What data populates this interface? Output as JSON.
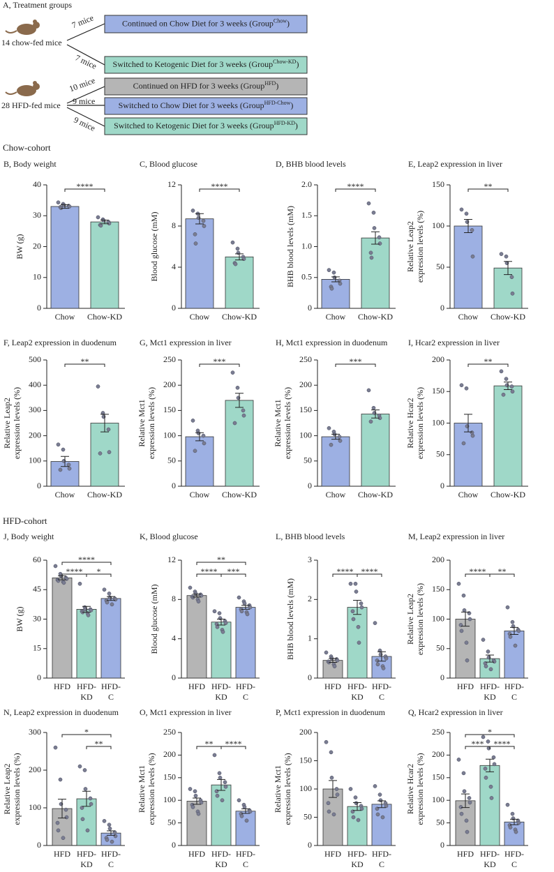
{
  "diagram": {
    "title": "A, Treatment groups",
    "groups": [
      {
        "label": "14 chow-fed mice",
        "arms": [
          {
            "n": "7 mice",
            "text": "Continued on Chow Diet for 3 weeks (Group",
            "sup": "Chow",
            "close": ")",
            "color": "#9db0e3"
          },
          {
            "n": "7 mice",
            "text": "Switched to Ketogenic Diet for 3 weeks (Group",
            "sup": "Chow-KD",
            "close": ")",
            "color": "#9fd8c8"
          }
        ]
      },
      {
        "label": "28 HFD-fed mice",
        "arms": [
          {
            "n": "10 mice",
            "text": "Continued on HFD for 3 weeks (Group",
            "sup": "HFD",
            "close": ")",
            "color": "#b5b5b5"
          },
          {
            "n": "9 mice",
            "text": "Switched to Chow Diet for 3 weeks (Group",
            "sup": "HFD-Chow",
            "close": ")",
            "color": "#9db0e3"
          },
          {
            "n": "9 mice",
            "text": "Switched to Ketogenic Diet for 3 weeks (Group",
            "sup": "HFD-KD",
            "close": ")",
            "color": "#9fd8c8"
          }
        ]
      }
    ]
  },
  "sections": [
    "Chow-cohort",
    "HFD-cohort"
  ],
  "chart_data": [
    {
      "type": "bar",
      "title": "B, Body weight",
      "ylabel": [
        "BW (g)"
      ],
      "categories": [
        "Chow",
        "Chow-KD"
      ],
      "colors": [
        "#9db0e3",
        "#9fd8c8"
      ],
      "values": [
        33,
        28
      ],
      "errors": [
        0.6,
        0.6
      ],
      "points": [
        [
          34.3,
          33.8,
          33.5,
          33.2,
          33,
          32.8,
          32.5
        ],
        [
          29.5,
          28.8,
          28.5,
          28,
          27.5,
          27,
          26.8
        ]
      ],
      "ylim": [
        0,
        40
      ],
      "yticks": [
        0,
        10,
        20,
        30,
        40
      ],
      "significance": [
        {
          "from": 0,
          "to": 1,
          "label": "****"
        }
      ]
    },
    {
      "type": "bar",
      "title": "C, Blood glucose",
      "ylabel": [
        "Blood glucose (mM)"
      ],
      "categories": [
        "Chow",
        "Chow-KD"
      ],
      "colors": [
        "#9db0e3",
        "#9fd8c8"
      ],
      "values": [
        8.7,
        5.0
      ],
      "errors": [
        0.5,
        0.3
      ],
      "points": [
        [
          9.5,
          9.2,
          8.8,
          8.5,
          8.0,
          7.2,
          6.3
        ],
        [
          6.4,
          5.8,
          5.4,
          5.0,
          4.8,
          4.4,
          4.3
        ]
      ],
      "ylim": [
        0,
        12
      ],
      "yticks": [
        0,
        4,
        8,
        12
      ],
      "significance": [
        {
          "from": 0,
          "to": 1,
          "label": "****"
        }
      ]
    },
    {
      "type": "bar",
      "title": "D, BHB blood levels",
      "ylabel": [
        "BHB blood levels (mM)"
      ],
      "categories": [
        "Chow",
        "Chow-KD"
      ],
      "colors": [
        "#9db0e3",
        "#9fd8c8"
      ],
      "values": [
        0.47,
        1.14
      ],
      "errors": [
        0.04,
        0.1
      ],
      "points": [
        [
          0.62,
          0.58,
          0.5,
          0.45,
          0.4,
          0.35,
          0.32
        ],
        [
          1.7,
          1.55,
          1.3,
          1.15,
          1.05,
          0.9,
          0.82
        ]
      ],
      "ylim": [
        0,
        2
      ],
      "yticks": [
        0,
        0.5,
        {
          "value": 1,
          "label": "1.0"
        },
        1.5,
        {
          "value": 2,
          "label": "2.0"
        }
      ],
      "significance": [
        {
          "from": 0,
          "to": 1,
          "label": "****"
        }
      ]
    },
    {
      "type": "bar",
      "title": "E, Leap2 expression in liver",
      "ylabel": [
        "Relative Leap2",
        "expression levels (%)"
      ],
      "categories": [
        "Chow",
        "Chow-KD"
      ],
      "colors": [
        "#9db0e3",
        "#9fd8c8"
      ],
      "values": [
        100,
        49
      ],
      "errors": [
        8,
        8
      ],
      "points": [
        [
          120,
          115,
          105,
          95,
          63
        ],
        [
          66,
          63,
          55,
          38,
          18
        ]
      ],
      "ylim": [
        0,
        150
      ],
      "yticks": [
        0,
        50,
        100,
        150
      ],
      "significance": [
        {
          "from": 0,
          "to": 1,
          "label": "**"
        }
      ]
    },
    {
      "type": "bar",
      "title": "F, Leap2 expression in duodenum",
      "ylabel": [
        "Relative Leap2",
        "expression levels (%)"
      ],
      "categories": [
        "Chow",
        "Chow-KD"
      ],
      "colors": [
        "#9db0e3",
        "#9fd8c8"
      ],
      "values": [
        98,
        250
      ],
      "errors": [
        20,
        35
      ],
      "points": [
        [
          165,
          145,
          100,
          85,
          70,
          65
        ],
        [
          395,
          290,
          275,
          225,
          135,
          130
        ]
      ],
      "ylim": [
        0,
        500
      ],
      "yticks": [
        0,
        100,
        200,
        300,
        400,
        500
      ],
      "significance": [
        {
          "from": 0,
          "to": 1,
          "label": "**"
        }
      ]
    },
    {
      "type": "bar",
      "title": "G, Mct1 expression in liver",
      "ylabel": [
        "Relative Mct1",
        "expression levels (%)"
      ],
      "categories": [
        "Chow",
        "Chow-KD"
      ],
      "colors": [
        "#9db0e3",
        "#9fd8c8"
      ],
      "values": [
        98,
        170
      ],
      "errors": [
        8,
        14
      ],
      "points": [
        [
          130,
          110,
          105,
          100,
          85,
          70
        ],
        [
          225,
          195,
          175,
          150,
          140,
          125
        ]
      ],
      "ylim": [
        0,
        250
      ],
      "yticks": [
        0,
        50,
        100,
        150,
        200,
        250
      ],
      "significance": [
        {
          "from": 0,
          "to": 1,
          "label": "***"
        }
      ]
    },
    {
      "type": "bar",
      "title": "H, Mct1 expression in duodenum",
      "ylabel": [
        "Relative Mct1",
        "expression levels (%)"
      ],
      "categories": [
        "Chow",
        "Chow-KD"
      ],
      "colors": [
        "#9db0e3",
        "#9fd8c8"
      ],
      "values": [
        98,
        143
      ],
      "errors": [
        5,
        8
      ],
      "points": [
        [
          115,
          108,
          103,
          98,
          90,
          82
        ],
        [
          190,
          155,
          145,
          140,
          135,
          128
        ]
      ],
      "ylim": [
        0,
        250
      ],
      "yticks": [
        0,
        50,
        100,
        150,
        200,
        250
      ],
      "significance": [
        {
          "from": 0,
          "to": 1,
          "label": "***"
        }
      ]
    },
    {
      "type": "bar",
      "title": "I, Hcar2 expression in liver",
      "ylabel": [
        "Relative Hcar2",
        "expression levels (%)"
      ],
      "categories": [
        "Chow",
        "Chow-KD"
      ],
      "colors": [
        "#9db0e3",
        "#9fd8c8"
      ],
      "values": [
        100,
        159
      ],
      "errors": [
        14,
        6
      ],
      "points": [
        [
          160,
          155,
          95,
          85,
          80,
          68
        ],
        [
          182,
          170,
          160,
          158,
          150,
          145
        ]
      ],
      "ylim": [
        0,
        200
      ],
      "yticks": [
        0,
        50,
        100,
        150,
        200
      ],
      "significance": [
        {
          "from": 0,
          "to": 1,
          "label": "**"
        }
      ]
    },
    {
      "type": "bar",
      "title": "J, Body weight",
      "ylabel": [
        "BW (g)"
      ],
      "categories": [
        "HFD",
        "HFD-KD",
        "HFD-C"
      ],
      "colors": [
        "#b5b5b5",
        "#9fd8c8",
        "#9db0e3"
      ],
      "values": [
        51,
        35,
        40.5
      ],
      "errors": [
        1,
        1.5,
        1
      ],
      "points": [
        [
          57,
          53,
          52,
          51,
          50.5,
          50,
          49.5,
          49,
          48.5
        ],
        [
          48,
          36,
          35,
          35,
          34.5,
          34,
          33.5,
          33,
          32
        ],
        [
          45,
          43,
          41,
          40.5,
          40,
          39.5,
          38.5,
          37.5
        ]
      ],
      "ylim": [
        0,
        60
      ],
      "yticks": [
        0,
        15,
        30,
        45,
        60
      ],
      "significance": [
        {
          "from": 0,
          "to": 2,
          "label": "****"
        },
        {
          "from": 0,
          "to": 1,
          "label": "****"
        },
        {
          "from": 1,
          "to": 2,
          "label": "*"
        }
      ]
    },
    {
      "type": "bar",
      "title": "K, Blood glucose",
      "ylabel": [
        "Blood glucose (mM)"
      ],
      "categories": [
        "HFD",
        "HFD-KD",
        "HFD-C"
      ],
      "colors": [
        "#b5b5b5",
        "#9fd8c8",
        "#9db0e3"
      ],
      "values": [
        8.4,
        5.7,
        7.2
      ],
      "errors": [
        0.15,
        0.3,
        0.2
      ],
      "points": [
        [
          9.2,
          8.8,
          8.6,
          8.5,
          8.4,
          8.3,
          8.2,
          8.0,
          7.8
        ],
        [
          6.8,
          6.6,
          6.1,
          5.8,
          5.6,
          5.5,
          5.2,
          4.9,
          4.7
        ],
        [
          8.2,
          7.8,
          7.6,
          7.4,
          7.2,
          7.0,
          6.8,
          6.7,
          6.5
        ]
      ],
      "ylim": [
        0,
        12
      ],
      "yticks": [
        0,
        4,
        8,
        12
      ],
      "significance": [
        {
          "from": 0,
          "to": 2,
          "label": "**"
        },
        {
          "from": 0,
          "to": 1,
          "label": "****"
        },
        {
          "from": 1,
          "to": 2,
          "label": "***"
        }
      ]
    },
    {
      "type": "bar",
      "title": "L, BHB blood levels",
      "ylabel": [
        "BHB blood levels (mM)"
      ],
      "categories": [
        "HFD",
        "HFD-KD",
        "HFD-C"
      ],
      "colors": [
        "#b5b5b5",
        "#9fd8c8",
        "#9db0e3"
      ],
      "values": [
        0.45,
        1.8,
        0.55
      ],
      "errors": [
        0.05,
        0.18,
        0.12
      ],
      "points": [
        [
          0.65,
          0.55,
          0.5,
          0.48,
          0.45,
          0.42,
          0.4,
          0.35,
          0.3
        ],
        [
          2.4,
          2.4,
          2.2,
          1.9,
          1.8,
          1.7,
          1.5,
          1.3,
          0.9
        ],
        [
          1.4,
          0.7,
          0.6,
          0.55,
          0.5,
          0.45,
          0.35,
          0.3,
          0.25
        ]
      ],
      "ylim": [
        0,
        3
      ],
      "yticks": [
        0,
        1,
        2,
        3
      ],
      "significance": [
        {
          "from": 0,
          "to": 1,
          "label": "****"
        },
        {
          "from": 1,
          "to": 2,
          "label": "****"
        }
      ]
    },
    {
      "type": "bar",
      "title": "M, Leap2 expression in liver",
      "ylabel": [
        "Relative Leap2",
        "expression levels (%)"
      ],
      "categories": [
        "HFD",
        "HFD-KD",
        "HFD-C"
      ],
      "colors": [
        "#b5b5b5",
        "#9fd8c8",
        "#9db0e3"
      ],
      "values": [
        100,
        33,
        80
      ],
      "errors": [
        12,
        6,
        6
      ],
      "points": [
        [
          160,
          140,
          115,
          110,
          100,
          90,
          80,
          60,
          30
        ],
        [
          65,
          45,
          35,
          30,
          28,
          25,
          20,
          15
        ],
        [
          120,
          95,
          88,
          82,
          80,
          75,
          70,
          55
        ]
      ],
      "ylim": [
        0,
        200
      ],
      "yticks": [
        0,
        50,
        100,
        150,
        200
      ],
      "significance": [
        {
          "from": 0,
          "to": 1,
          "label": "****"
        },
        {
          "from": 1,
          "to": 2,
          "label": "**"
        }
      ]
    },
    {
      "type": "bar",
      "title": "N, Leap2 expression in duodenum",
      "ylabel": [
        "Relative Leap2",
        "expression levels (%)"
      ],
      "categories": [
        "HFD",
        "HFD-KD",
        "HFD-C"
      ],
      "colors": [
        "#b5b5b5",
        "#9fd8c8",
        "#9db0e3"
      ],
      "values": [
        98,
        124,
        33
      ],
      "errors": [
        25,
        20,
        6
      ],
      "points": [
        [
          260,
          175,
          110,
          95,
          75,
          60,
          40,
          20
        ],
        [
          210,
          200,
          150,
          125,
          110,
          100,
          70,
          40
        ],
        [
          65,
          55,
          45,
          35,
          25,
          20,
          15,
          10
        ]
      ],
      "ylim": [
        0,
        300
      ],
      "yticks": [
        0,
        100,
        200,
        300
      ],
      "significance": [
        {
          "from": 0,
          "to": 2,
          "label": "*"
        },
        {
          "from": 1,
          "to": 2,
          "label": "**"
        }
      ]
    },
    {
      "type": "bar",
      "title": "O, Mct1 expression in liver",
      "ylabel": [
        "Relative Mct1",
        "expression levels (%)"
      ],
      "categories": [
        "HFD",
        "HFD-KD",
        "HFD-C"
      ],
      "colors": [
        "#b5b5b5",
        "#9fd8c8",
        "#9db0e3"
      ],
      "values": [
        98,
        134,
        76
      ],
      "errors": [
        7,
        12,
        5
      ],
      "points": [
        [
          125,
          120,
          110,
          100,
          95,
          90,
          85,
          75,
          70
        ],
        [
          200,
          160,
          150,
          140,
          130,
          120,
          110,
          100
        ],
        [
          100,
          90,
          85,
          78,
          75,
          70,
          65,
          55
        ]
      ],
      "ylim": [
        0,
        250
      ],
      "yticks": [
        0,
        50,
        100,
        150,
        200,
        250
      ],
      "significance": [
        {
          "from": 0,
          "to": 1,
          "label": "**"
        },
        {
          "from": 1,
          "to": 2,
          "label": "****"
        }
      ]
    },
    {
      "type": "bar",
      "title": "P, Mct1 expression in duodenum",
      "ylabel": [
        "Relative Mct1",
        "expression levels (%)"
      ],
      "categories": [
        "HFD",
        "HFD-KD",
        "HFD-C"
      ],
      "colors": [
        "#b5b5b5",
        "#9fd8c8",
        "#9db0e3"
      ],
      "values": [
        100,
        69,
        73
      ],
      "errors": [
        15,
        7,
        6
      ],
      "points": [
        [
          183,
          165,
          120,
          100,
          90,
          75,
          60,
          55
        ],
        [
          100,
          85,
          75,
          70,
          65,
          60,
          50,
          45
        ],
        [
          105,
          90,
          80,
          75,
          70,
          65,
          55,
          50
        ]
      ],
      "ylim": [
        0,
        200
      ],
      "yticks": [
        0,
        50,
        100,
        150,
        200
      ],
      "significance": []
    },
    {
      "type": "bar",
      "title": "Q, Hcar2 expression in liver",
      "ylabel": [
        "Relative Hcar2",
        "expression levels (%)"
      ],
      "categories": [
        "HFD",
        "HFD-KD",
        "HFD-C"
      ],
      "colors": [
        "#b5b5b5",
        "#9fd8c8",
        "#9db0e3"
      ],
      "values": [
        99,
        177,
        52
      ],
      "errors": [
        15,
        14,
        6
      ],
      "points": [
        [
          190,
          160,
          120,
          105,
          95,
          85,
          70,
          55,
          30
        ],
        [
          240,
          230,
          215,
          195,
          180,
          170,
          150,
          130,
          105
        ],
        [
          90,
          70,
          60,
          55,
          50,
          45,
          40,
          35,
          30
        ]
      ],
      "ylim": [
        0,
        250
      ],
      "yticks": [
        0,
        50,
        100,
        150,
        200,
        250
      ],
      "significance": [
        {
          "from": 0,
          "to": 2,
          "label": "*"
        },
        {
          "from": 0,
          "to": 1,
          "label": "***"
        },
        {
          "from": 1,
          "to": 2,
          "label": "****"
        }
      ]
    }
  ]
}
